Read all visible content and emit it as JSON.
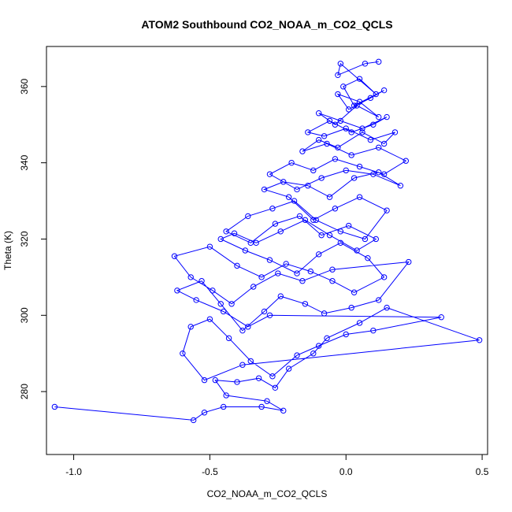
{
  "chart_data": {
    "type": "scatter",
    "title": "ATOM2 Southbound CO2_NOAA_m_CO2_QCLS",
    "xlabel": "CO2_NOAA_m_CO2_QCLS",
    "ylabel": "Theta (K)",
    "xlim": [
      -1.1,
      0.52
    ],
    "ylim": [
      263.5,
      370.5
    ],
    "xticks": [
      -1.0,
      -0.5,
      0.0,
      0.5
    ],
    "xtick_labels": [
      "-1.0",
      "-0.5",
      "0.0",
      "0.5"
    ],
    "yticks": [
      280,
      300,
      320,
      340,
      360
    ],
    "ytick_labels": [
      "280",
      "300",
      "320",
      "340",
      "360"
    ],
    "grid": false,
    "legend": "none",
    "color": "#0000ff",
    "marker": "open-circle",
    "connect_points": true,
    "series": [
      {
        "name": "CO2_NOAA_m_CO2_QCLS",
        "x": [
          -1.07,
          -0.56,
          -0.52,
          -0.45,
          -0.31,
          -0.23,
          -0.29,
          -0.44,
          -0.48,
          -0.4,
          -0.32,
          -0.26,
          -0.21,
          -0.12,
          -0.07,
          0.05,
          0.15,
          0.49,
          -0.38,
          -0.52,
          -0.6,
          -0.57,
          -0.5,
          -0.43,
          -0.35,
          -0.27,
          -0.18,
          -0.1,
          0.0,
          0.1,
          0.35,
          -0.28,
          -0.36,
          -0.45,
          -0.55,
          -0.62,
          -0.53,
          -0.46,
          -0.38,
          -0.3,
          -0.24,
          -0.15,
          -0.08,
          0.02,
          0.12,
          0.23,
          -0.05,
          -0.16,
          -0.25,
          -0.34,
          -0.42,
          -0.49,
          -0.57,
          -0.63,
          -0.5,
          -0.4,
          -0.31,
          -0.22,
          -0.13,
          -0.05,
          0.03,
          0.14,
          0.08,
          -0.02,
          -0.1,
          -0.18,
          -0.28,
          -0.37,
          -0.46,
          -0.41,
          -0.33,
          -0.24,
          -0.15,
          -0.06,
          0.04,
          0.11,
          0.01,
          -0.09,
          -0.17,
          -0.26,
          -0.35,
          -0.44,
          -0.36,
          -0.27,
          -0.19,
          -0.11,
          -0.02,
          0.07,
          0.15,
          0.05,
          -0.04,
          -0.12,
          -0.21,
          -0.3,
          -0.23,
          -0.14,
          -0.06,
          0.03,
          0.12,
          0.2,
          0.1,
          0.0,
          -0.09,
          -0.18,
          -0.28,
          -0.2,
          -0.12,
          -0.04,
          0.05,
          0.14,
          0.22,
          0.12,
          0.02,
          -0.07,
          -0.16,
          -0.1,
          -0.03,
          0.06,
          0.14,
          0.18,
          0.09,
          0.0,
          -0.08,
          -0.14,
          -0.06,
          0.02,
          0.1,
          0.15,
          0.06,
          -0.02,
          -0.1,
          -0.04,
          0.04,
          0.12,
          0.05,
          -0.03,
          0.01,
          0.09,
          0.14,
          0.03,
          -0.01,
          0.05,
          0.11,
          -0.02,
          -0.03,
          0.07,
          0.12
        ],
        "y": [
          276,
          272.5,
          274.5,
          276,
          276,
          275,
          277.5,
          279,
          283,
          282.5,
          283.5,
          281,
          286,
          290,
          294,
          298,
          302,
          293.5,
          287,
          283,
          290,
          297,
          299,
          294,
          288,
          284,
          289.5,
          292,
          295,
          296,
          299.5,
          300,
          297,
          301,
          304,
          306.5,
          309,
          303,
          296,
          301,
          305,
          303,
          300.5,
          302,
          304,
          314,
          312,
          309,
          311,
          307.5,
          303,
          306.5,
          310,
          315.5,
          318,
          313,
          310,
          313.5,
          311.5,
          309,
          306,
          310,
          315,
          319,
          316,
          311,
          314.5,
          317,
          320,
          321.5,
          319,
          322,
          325,
          321,
          317,
          320,
          323.5,
          321,
          326,
          324,
          319,
          322,
          326,
          328,
          330,
          325,
          322,
          320,
          327.5,
          331,
          328,
          325,
          331,
          333,
          335,
          334,
          331,
          336,
          337.5,
          334,
          337,
          338,
          336,
          333,
          337,
          340,
          338,
          341,
          339,
          337,
          340.5,
          344,
          342,
          345,
          343,
          346,
          344,
          348,
          345,
          348,
          346,
          349,
          347,
          348,
          351,
          348,
          350,
          352,
          349,
          351,
          353,
          350,
          355,
          352,
          356,
          358,
          354,
          357,
          359,
          355,
          360,
          362,
          358,
          366,
          363,
          366,
          366.5
        ]
      }
    ]
  }
}
